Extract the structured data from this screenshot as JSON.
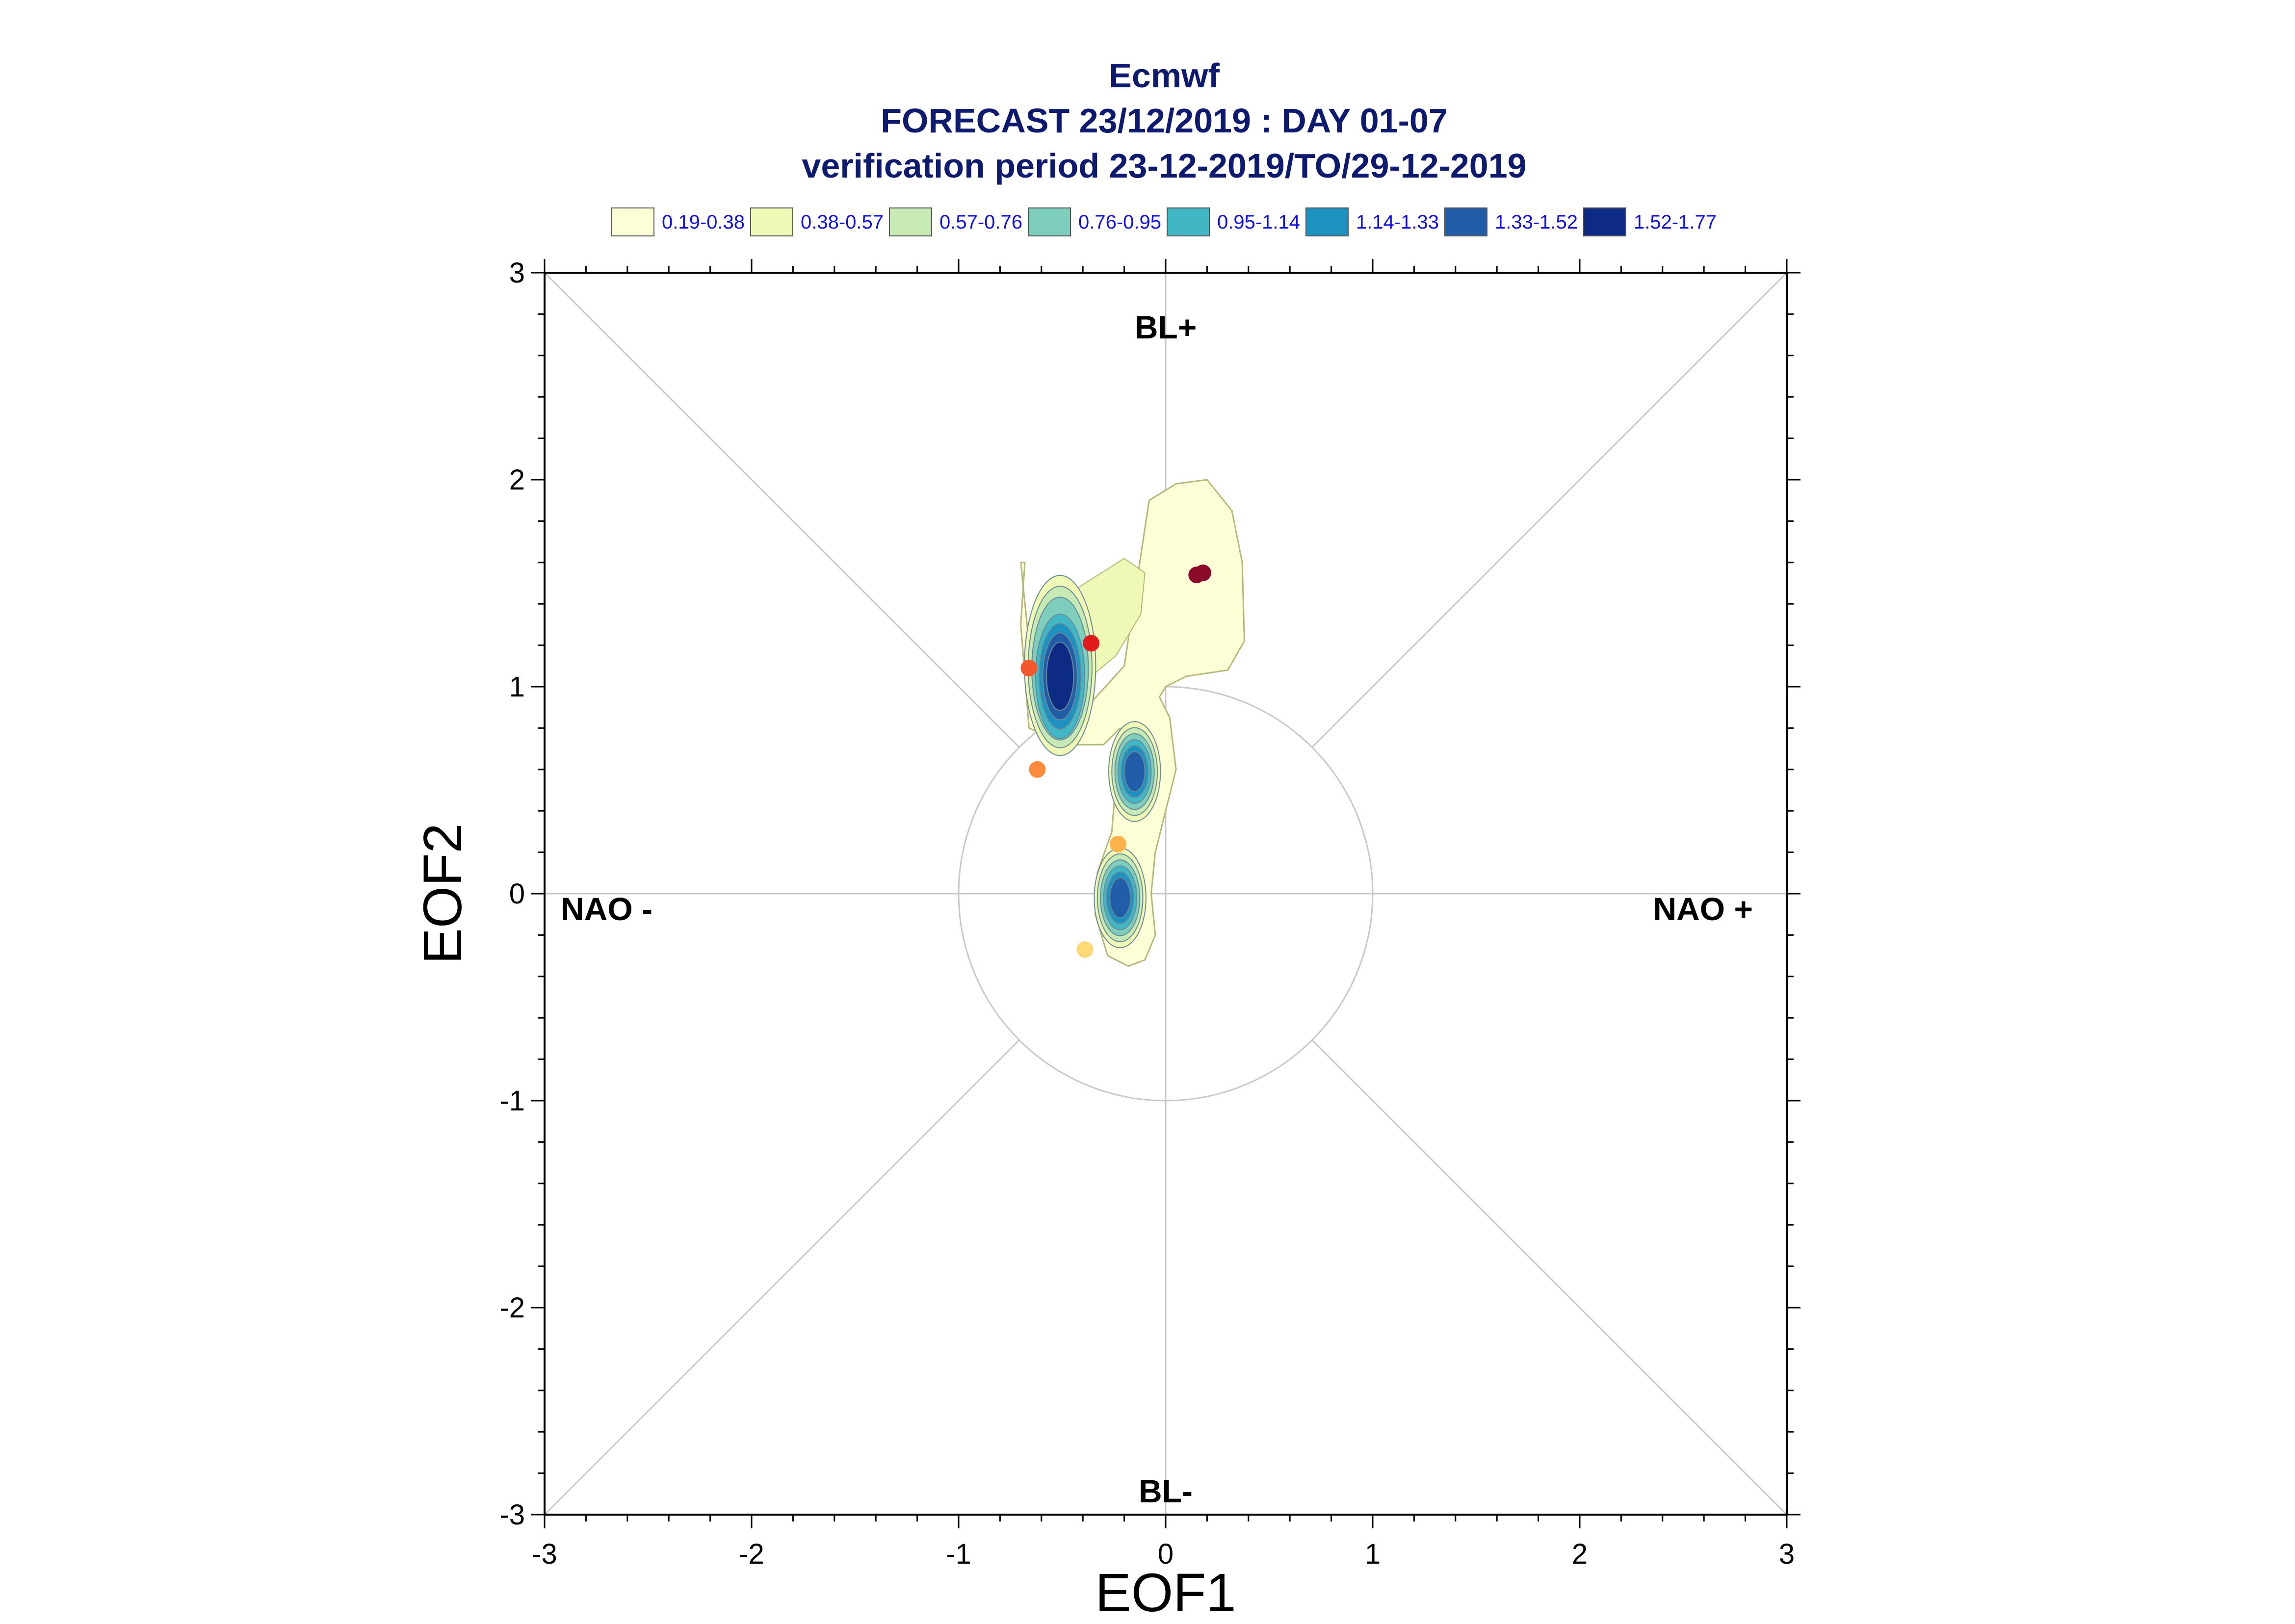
{
  "chart_data": {
    "type": "scatter",
    "title": "Ecmwf",
    "subtitle": "FORECAST 23/12/2019 : DAY 01-07",
    "subtitle2": "verification period 23-12-2019/TO/29-12-2019",
    "xlabel": "EOF1",
    "ylabel": "EOF2",
    "xlim": [
      -3,
      3
    ],
    "ylim": [
      -3,
      3
    ],
    "x_ticks": [
      "-3",
      "-2",
      "-1",
      "0",
      "1",
      "2",
      "3"
    ],
    "y_ticks": [
      "-3",
      "-2",
      "-1",
      "0",
      "1",
      "2",
      "3"
    ],
    "reference_circle_radius": 1,
    "region_labels": {
      "top": "BL+",
      "bottom": "BL-",
      "left": "NAO -",
      "right": "NAO +"
    },
    "legend": {
      "placement": "top",
      "entries": [
        {
          "label": "0.19-0.38",
          "color": "#fdfed6"
        },
        {
          "label": "0.38-0.57",
          "color": "#eff8b4"
        },
        {
          "label": "0.57-0.76",
          "color": "#c7e9b4"
        },
        {
          "label": "0.76-0.95",
          "color": "#7fcdbb"
        },
        {
          "label": "0.95-1.14",
          "color": "#41b6c4"
        },
        {
          "label": "1.14-1.33",
          "color": "#1d91c0"
        },
        {
          "label": "1.33-1.52",
          "color": "#225ea8"
        },
        {
          "label": "1.52-1.77",
          "color": "#0c2c84"
        }
      ]
    },
    "density_centers": [
      {
        "x": -0.51,
        "y": 1.05,
        "peak_level": 8
      },
      {
        "x": -0.15,
        "y": 0.59,
        "peak_level": 7
      },
      {
        "x": -0.22,
        "y": -0.02,
        "peak_level": 7
      }
    ],
    "points": [
      {
        "x": 0.15,
        "y": 1.54,
        "color": "#8b0a2a"
      },
      {
        "x": 0.18,
        "y": 1.55,
        "color": "#8b0a2a"
      },
      {
        "x": -0.36,
        "y": 1.21,
        "color": "#e31a1c"
      },
      {
        "x": -0.66,
        "y": 1.09,
        "color": "#f4582a"
      },
      {
        "x": -0.62,
        "y": 0.6,
        "color": "#fb8a3a"
      },
      {
        "x": -0.23,
        "y": 0.24,
        "color": "#feb24c"
      },
      {
        "x": -0.39,
        "y": -0.27,
        "color": "#fed976"
      }
    ]
  }
}
